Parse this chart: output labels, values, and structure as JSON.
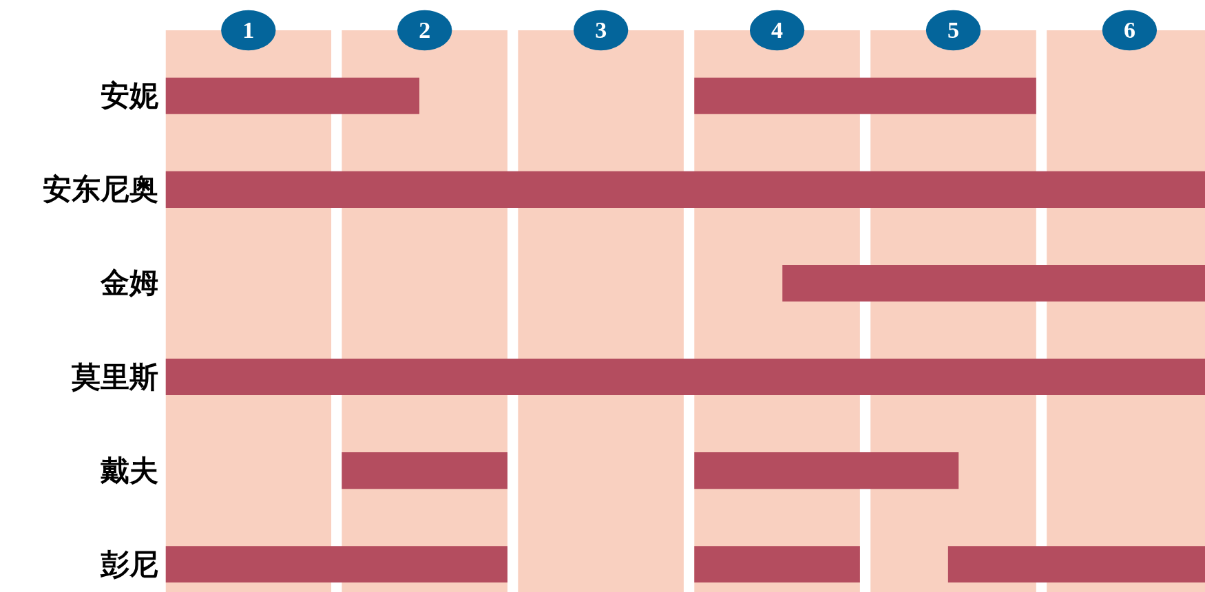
{
  "chart_data": {
    "type": "bar",
    "orientation": "horizontal",
    "categories": [
      "安妮",
      "安东尼奥",
      "金姆",
      "莫里斯",
      "戴夫",
      "彭尼"
    ],
    "series": [
      {
        "color": "#b44d5f",
        "values": [
          1.44,
          5.9,
          2.4,
          5.9,
          0.94,
          1.94
        ],
        "base": [
          0.53,
          0.53,
          4.03,
          0.53,
          1.53,
          0.53
        ]
      },
      {
        "color": "#b44d5f",
        "values": [
          1.94,
          null,
          null,
          null,
          1.5,
          0.94
        ],
        "base": [
          3.53,
          null,
          null,
          null,
          3.53,
          3.53
        ]
      },
      {
        "color": "#b44d5f",
        "values": [
          null,
          null,
          null,
          null,
          null,
          1.46
        ],
        "base": [
          null,
          null,
          null,
          null,
          null,
          4.97
        ]
      }
    ],
    "xlim": [
      0.53,
      6.43
    ],
    "xticks": [
      1,
      2,
      3,
      4,
      5,
      6
    ],
    "bands": [
      {
        "axis": "x",
        "from": 0.53,
        "to": 1.47,
        "color": "#f9d0c0"
      },
      {
        "axis": "x",
        "from": 1.53,
        "to": 2.47,
        "color": "#f9d0c0"
      },
      {
        "axis": "x",
        "from": 2.53,
        "to": 3.47,
        "color": "#f9d0c0"
      },
      {
        "axis": "x",
        "from": 3.53,
        "to": 4.47,
        "color": "#f9d0c0"
      },
      {
        "axis": "x",
        "from": 4.53,
        "to": 5.47,
        "color": "#f9d0c0"
      },
      {
        "axis": "x",
        "from": 5.53,
        "to": 6.43,
        "color": "#f9d0c0"
      }
    ],
    "grid": false
  }
}
